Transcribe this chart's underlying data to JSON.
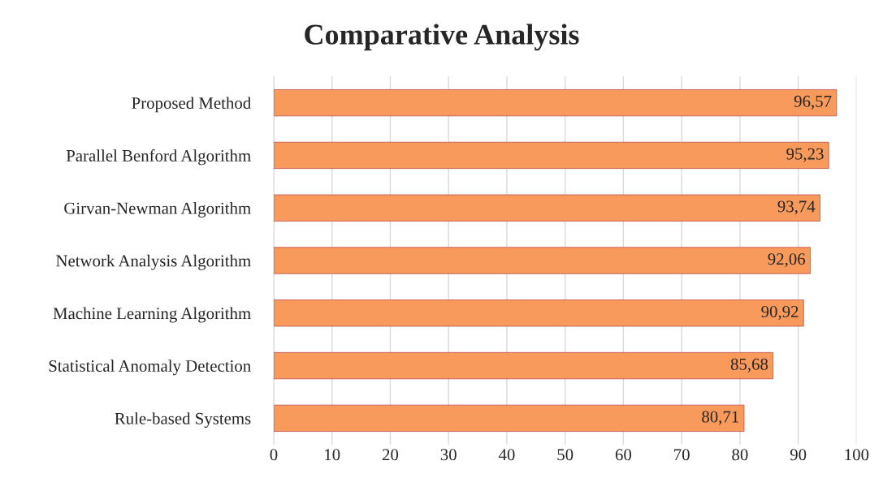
{
  "chart_data": {
    "type": "bar",
    "orientation": "horizontal",
    "title": "Comparative Analysis",
    "categories": [
      "Proposed Method",
      "Parallel Benford Algorithm",
      "Girvan-Newman Algorithm",
      "Network Analysis Algorithm",
      "Machine Learning Algorithm",
      "Statistical Anomaly Detection",
      "Rule-based Systems"
    ],
    "values": [
      96.57,
      95.23,
      93.74,
      92.06,
      90.92,
      85.68,
      80.71
    ],
    "value_labels": [
      "96,57",
      "95,23",
      "93,74",
      "92,06",
      "90,92",
      "85,68",
      "80,71"
    ],
    "color": "#f79a5c",
    "xlim": [
      0,
      100
    ],
    "xticks": [
      0,
      10,
      20,
      30,
      40,
      50,
      60,
      70,
      80,
      90,
      100
    ],
    "grid": "x",
    "legend": false
  }
}
